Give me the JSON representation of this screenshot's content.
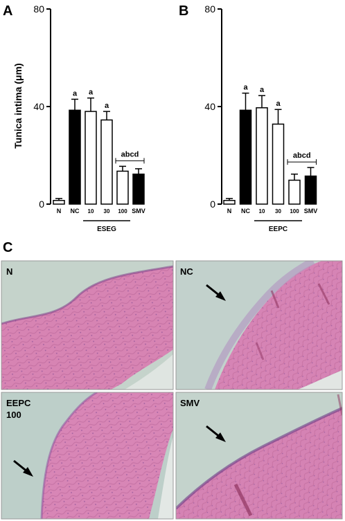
{
  "panel_labels": [
    "A",
    "B",
    "C"
  ],
  "chart_data": [
    {
      "type": "bar",
      "panel": "A",
      "ylabel": "Tunica intima (μm)",
      "ylim": [
        0,
        80
      ],
      "yticks": [
        "0",
        "40",
        "80"
      ],
      "categories": [
        "N",
        "NC",
        "10",
        "30",
        "100",
        "SMV"
      ],
      "values": [
        1.5,
        38.5,
        38,
        34.5,
        13.5,
        12.3
      ],
      "errors": [
        0.8,
        4.5,
        5.5,
        3.5,
        2,
        2.2
      ],
      "fills": [
        "#ffffff",
        "#000000",
        "#ffffff",
        "#ffffff",
        "#ffffff",
        "#000000"
      ],
      "sig_labels": [
        "",
        "a",
        "a",
        "a",
        "",
        ""
      ],
      "bracket_label": "abcd",
      "group_label": "ESEG"
    },
    {
      "type": "bar",
      "panel": "B",
      "ylabel": "",
      "ylim": [
        0,
        80
      ],
      "yticks": [
        "0",
        "40",
        "80"
      ],
      "categories": [
        "N",
        "NC",
        "10",
        "30",
        "100",
        "SMV"
      ],
      "values": [
        1.5,
        38.5,
        39.5,
        32.8,
        9.8,
        11.5
      ],
      "errors": [
        0.8,
        7,
        5,
        6,
        2.5,
        3.5
      ],
      "fills": [
        "#ffffff",
        "#000000",
        "#ffffff",
        "#ffffff",
        "#ffffff",
        "#000000"
      ],
      "sig_labels": [
        "",
        "a",
        "a",
        "a",
        "",
        ""
      ],
      "bracket_label": "abcd",
      "group_label": "EEPC"
    }
  ],
  "micrographs": [
    {
      "label": "N"
    },
    {
      "label": "NC"
    },
    {
      "label": "EEPC\n100"
    },
    {
      "label": "SMV"
    }
  ],
  "colors": {
    "tissue": "#d985b4",
    "background": "#c2d2cb",
    "bar_dark": "#000000"
  }
}
